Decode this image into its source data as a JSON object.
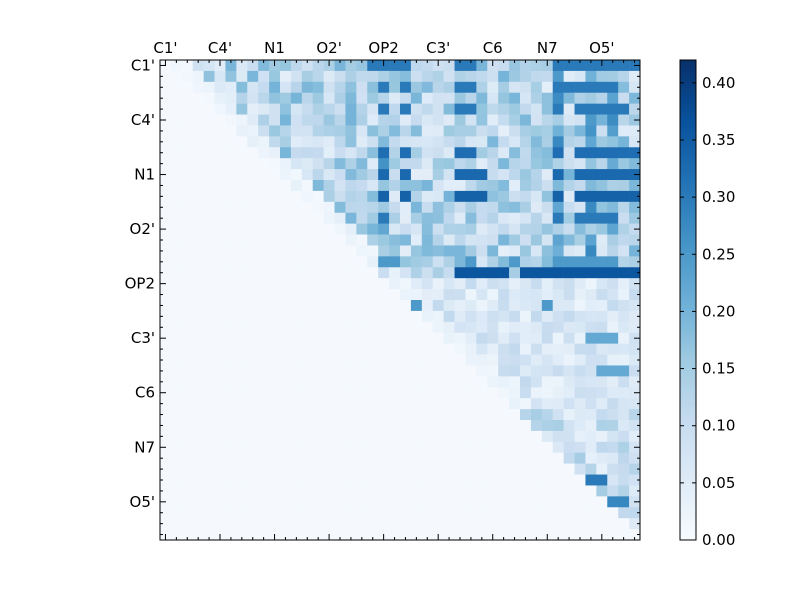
{
  "chart_data": {
    "type": "heatmap",
    "title": "",
    "xlabel": "",
    "ylabel": "",
    "n": 44,
    "x_tick_labels": [
      "C1'",
      "C4'",
      "N1",
      "O2'",
      "OP2",
      "C3'",
      "C6",
      "N7",
      "O5'"
    ],
    "y_tick_labels": [
      "C1'",
      "C4'",
      "N1",
      "O2'",
      "OP2",
      "C3'",
      "C6",
      "N7",
      "O5'"
    ],
    "tick_indices": [
      0,
      5,
      10,
      15,
      20,
      25,
      30,
      35,
      40
    ],
    "colorbar": {
      "min": 0.0,
      "max": 0.42,
      "ticks": [
        0.0,
        0.05,
        0.1,
        0.15,
        0.2,
        0.25,
        0.3,
        0.35,
        0.4
      ],
      "tick_labels": [
        "0.00",
        "0.05",
        "0.10",
        "0.15",
        "0.20",
        "0.25",
        "0.30",
        "0.35",
        "0.40"
      ],
      "colormap": [
        "#f7fbff",
        "#deebf7",
        "#c6dbef",
        "#9ecae1",
        "#6baed6",
        "#4292c6",
        "#2171b5",
        "#08519c",
        "#08306b"
      ]
    },
    "highlight_cells": [
      {
        "row": 0,
        "cols": [
          19,
          20,
          21,
          22,
          27,
          28,
          36,
          37,
          38,
          39,
          40,
          41,
          42,
          43
        ],
        "value": 0.3
      },
      {
        "row": 2,
        "cols": [
          20,
          22,
          27,
          28,
          36,
          37,
          38,
          39,
          40,
          41
        ],
        "value": 0.3
      },
      {
        "row": 4,
        "cols": [
          20,
          22,
          27,
          28,
          36,
          38,
          39,
          40,
          41,
          42
        ],
        "value": 0.3
      },
      {
        "row": 8,
        "cols": [
          20,
          22,
          27,
          28,
          36,
          38,
          39,
          40,
          41,
          42,
          43
        ],
        "value": 0.32
      },
      {
        "row": 10,
        "cols": [
          20,
          22,
          27,
          28,
          29,
          36,
          38,
          39,
          40,
          41,
          42,
          43
        ],
        "value": 0.33
      },
      {
        "row": 12,
        "cols": [
          20,
          22,
          27,
          28,
          29,
          36,
          38,
          39,
          40,
          41,
          42,
          43
        ],
        "value": 0.34
      },
      {
        "row": 14,
        "cols": [
          20,
          36,
          38,
          39,
          40,
          41
        ],
        "value": 0.3
      },
      {
        "row": 18,
        "cols": [
          20,
          21,
          28,
          32,
          36,
          37,
          38,
          39,
          40,
          41
        ],
        "value": 0.25
      },
      {
        "row": 19,
        "cols": [
          27,
          28,
          29,
          30,
          31,
          33,
          34,
          35,
          36,
          37,
          38,
          39,
          40,
          41,
          42,
          43
        ],
        "value": 0.36
      },
      {
        "row": 22,
        "cols": [
          22,
          23,
          35
        ],
        "value": 0.25
      },
      {
        "row": 25,
        "cols": [
          39,
          40,
          41
        ],
        "value": 0.22
      },
      {
        "row": 28,
        "cols": [
          40,
          41,
          42
        ],
        "value": 0.22
      },
      {
        "row": 38,
        "cols": [
          39,
          40
        ],
        "value": 0.3
      },
      {
        "row": 40,
        "cols": [
          41,
          42
        ],
        "value": 0.28
      }
    ]
  }
}
